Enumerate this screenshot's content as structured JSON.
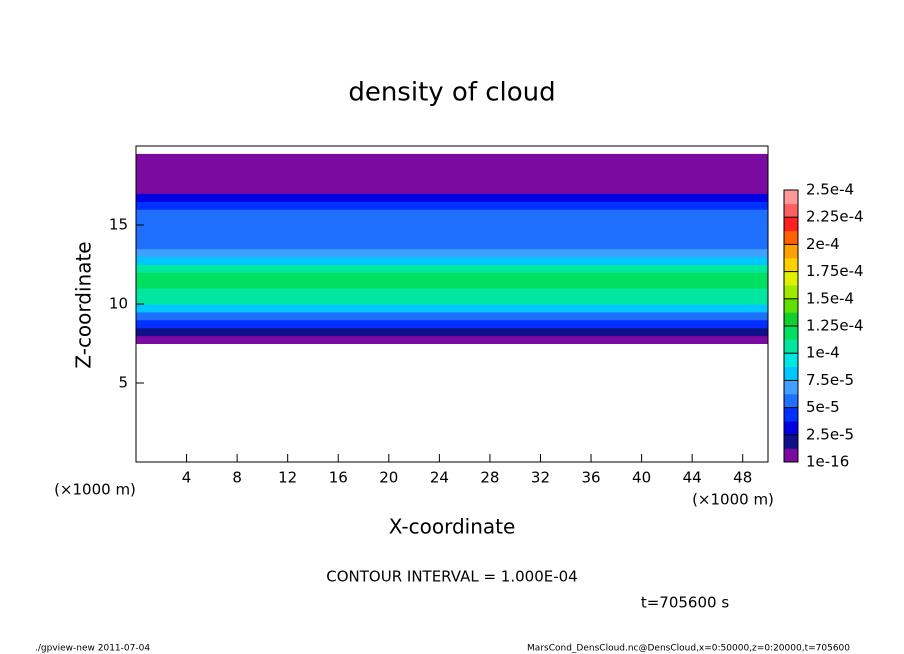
{
  "chart_data": {
    "type": "contourf",
    "title": "density of cloud",
    "xlabel": "X-coordinate",
    "ylabel": "Z-coordinate",
    "xunit_left": "(×1000 m)",
    "xunit_right": "(×1000 m)",
    "contour_note": "CONTOUR INTERVAL = 1.000E-04",
    "time_note": "t=705600 s",
    "footer_left": "./gpview-new  2011-07-04",
    "footer_right": "MarsCond_DensCloud.nc@DensCloud,x=0:50000,z=0:20000,t=705600",
    "xlim": [
      0,
      50
    ],
    "xticks": [
      4,
      8,
      12,
      16,
      20,
      24,
      28,
      32,
      36,
      40,
      44,
      48
    ],
    "ylim": [
      0,
      20
    ],
    "yticks": [
      5,
      10,
      15
    ],
    "z_bins": [
      7.5,
      8,
      8.5,
      9,
      9.5,
      10,
      10.5,
      11,
      11.5,
      12,
      12.5,
      13,
      13.5,
      14,
      15,
      16,
      16.5,
      17,
      17.5,
      18,
      19,
      19.5
    ],
    "values": [
      1e-16,
      2e-05,
      4e-05,
      6e-05,
      8e-05,
      0.0001,
      0.00011,
      0.000115,
      0.000115,
      0.000105,
      8.5e-05,
      7e-05,
      6e-05,
      5.5e-05,
      5e-05,
      4e-05,
      3e-05,
      1e-05,
      1e-10,
      1e-16,
      1e-16
    ],
    "colorbar_ticks": [
      1e-16,
      {
        "value": 2.5e-05,
        "label": "2.5e-5"
      },
      {
        "value": 5e-05,
        "label": "5e-5"
      },
      {
        "value": 7.5e-05,
        "label": "7.5e-5"
      },
      {
        "value": 0.0001,
        "label": "1e-4"
      },
      {
        "value": 0.000125,
        "label": "1.25e-4"
      },
      {
        "value": 0.00015,
        "label": "1.5e-4"
      },
      {
        "value": 0.000175,
        "label": "1.75e-4"
      },
      {
        "value": 0.0002,
        "label": "2e-4"
      },
      {
        "value": 0.000225,
        "label": "2.25e-4"
      },
      {
        "value": 0.00025,
        "label": "2.5e-4"
      }
    ],
    "colors": [
      "#7a0aa0",
      "#10108a",
      "#0000e0",
      "#0030ff",
      "#2070ff",
      "#40a0ff",
      "#00c8ff",
      "#00e8e0",
      "#00e8a0",
      "#00e060",
      "#10d030",
      "#60e000",
      "#a0e800",
      "#e0f000",
      "#ffd000",
      "#ffa000",
      "#ff6000",
      "#ff2020",
      "#ff6060",
      "#ff9898"
    ]
  }
}
